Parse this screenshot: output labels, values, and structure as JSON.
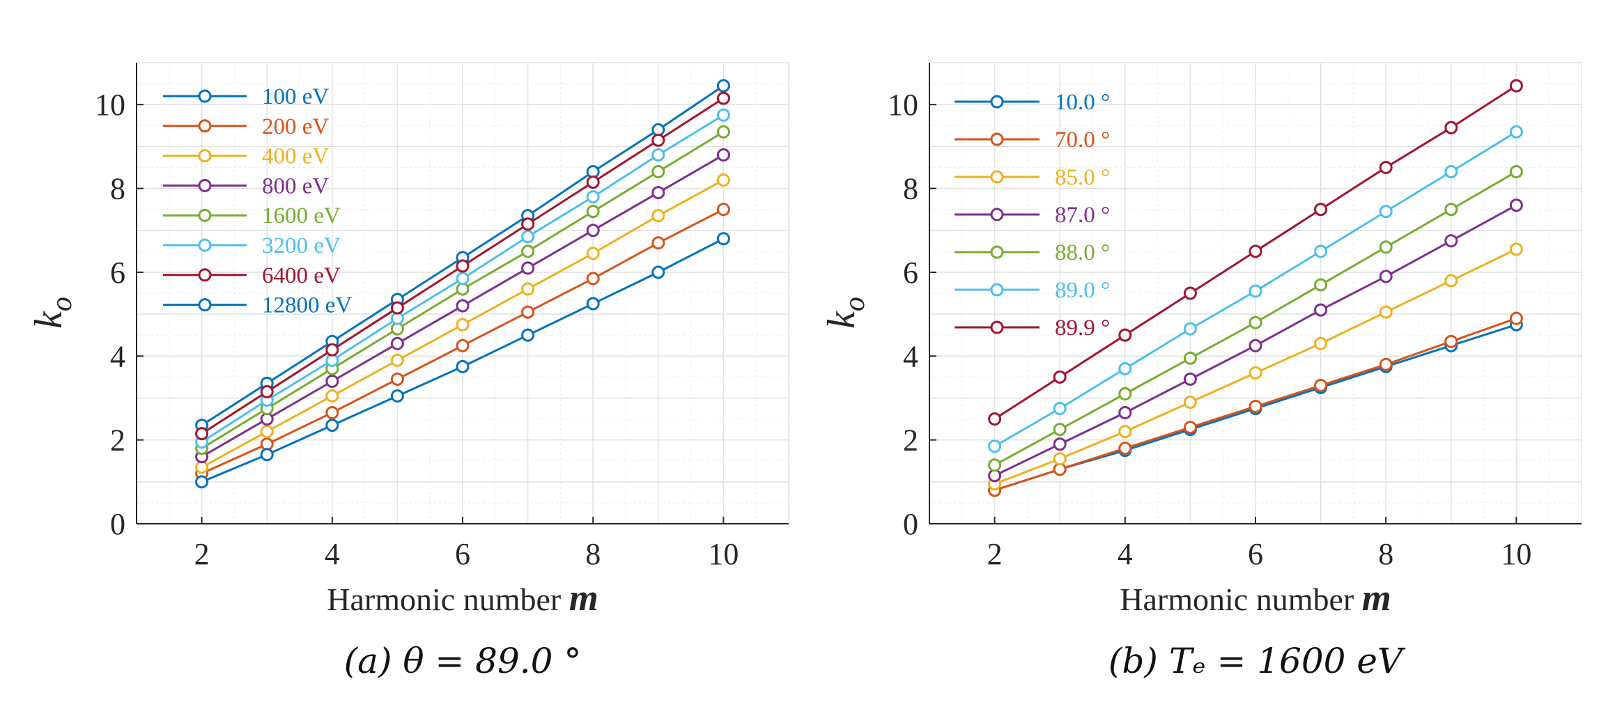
{
  "chart_data": [
    {
      "type": "line",
      "caption": "(a)  θ = 89.0 °",
      "xlabel_text": "Harmonic number ",
      "xlabel_var": "m",
      "ylabel_base": "k",
      "ylabel_sub": "o",
      "xlim": [
        1,
        11
      ],
      "ylim": [
        0,
        11
      ],
      "xticks": [
        2,
        4,
        6,
        8,
        10
      ],
      "yticks": [
        0,
        2,
        4,
        6,
        8,
        10
      ],
      "grid": true,
      "legend_position": "top-left",
      "x": [
        2,
        3,
        4,
        5,
        6,
        7,
        8,
        9,
        10
      ],
      "series": [
        {
          "name": "100 eV",
          "color": "#0072BD",
          "values": [
            2.35,
            3.35,
            4.35,
            5.35,
            6.35,
            7.35,
            8.4,
            9.4,
            10.45
          ]
        },
        {
          "name": "200 eV",
          "color": "#D95319",
          "values": [
            1.2,
            1.9,
            2.65,
            3.45,
            4.25,
            5.05,
            5.85,
            6.7,
            7.5
          ]
        },
        {
          "name": "400 eV",
          "color": "#EDB120",
          "values": [
            1.35,
            2.2,
            3.05,
            3.9,
            4.75,
            5.6,
            6.45,
            7.35,
            8.2
          ]
        },
        {
          "name": "800 eV",
          "color": "#7E2F8E",
          "values": [
            1.6,
            2.5,
            3.4,
            4.3,
            5.2,
            6.1,
            7.0,
            7.9,
            8.8
          ]
        },
        {
          "name": "1600 eV",
          "color": "#77AC30",
          "values": [
            1.8,
            2.75,
            3.7,
            4.65,
            5.6,
            6.5,
            7.45,
            8.4,
            9.35
          ]
        },
        {
          "name": "3200 eV",
          "color": "#4DBEEE",
          "values": [
            1.95,
            2.95,
            3.9,
            4.9,
            5.85,
            6.85,
            7.8,
            8.8,
            9.75
          ]
        },
        {
          "name": "6400 eV",
          "color": "#A2142F",
          "values": [
            2.15,
            3.15,
            4.15,
            5.15,
            6.15,
            7.15,
            8.15,
            9.15,
            10.15
          ]
        },
        {
          "name": "12800 eV",
          "color": "#0072BD",
          "values": [
            1.0,
            1.65,
            2.35,
            3.05,
            3.75,
            4.5,
            5.25,
            6.0,
            6.8
          ]
        }
      ]
    },
    {
      "type": "line",
      "caption": "(b)  Tₑ = 1600 eV",
      "xlabel_text": "Harmonic number ",
      "xlabel_var": "m",
      "ylabel_base": "k",
      "ylabel_sub": "o",
      "xlim": [
        1,
        11
      ],
      "ylim": [
        0,
        11
      ],
      "xticks": [
        2,
        4,
        6,
        8,
        10
      ],
      "yticks": [
        0,
        2,
        4,
        6,
        8,
        10
      ],
      "grid": true,
      "legend_position": "top-left",
      "x": [
        2,
        3,
        4,
        5,
        6,
        7,
        8,
        9,
        10
      ],
      "series": [
        {
          "name": "10.0 °",
          "color": "#0072BD",
          "values": [
            0.8,
            1.3,
            1.75,
            2.25,
            2.75,
            3.25,
            3.75,
            4.25,
            4.75
          ]
        },
        {
          "name": "70.0 °",
          "color": "#D95319",
          "values": [
            0.8,
            1.3,
            1.8,
            2.3,
            2.8,
            3.3,
            3.8,
            4.35,
            4.9
          ]
        },
        {
          "name": "85.0 °",
          "color": "#EDB120",
          "values": [
            0.95,
            1.55,
            2.2,
            2.9,
            3.6,
            4.3,
            5.05,
            5.8,
            6.55
          ]
        },
        {
          "name": "87.0 °",
          "color": "#7E2F8E",
          "values": [
            1.15,
            1.9,
            2.65,
            3.45,
            4.25,
            5.1,
            5.9,
            6.75,
            7.6
          ]
        },
        {
          "name": "88.0 °",
          "color": "#77AC30",
          "values": [
            1.4,
            2.25,
            3.1,
            3.95,
            4.8,
            5.7,
            6.6,
            7.5,
            8.4
          ]
        },
        {
          "name": "89.0 °",
          "color": "#4DBEEE",
          "values": [
            1.85,
            2.75,
            3.7,
            4.65,
            5.55,
            6.5,
            7.45,
            8.4,
            9.35
          ]
        },
        {
          "name": "89.9 °",
          "color": "#A2142F",
          "values": [
            2.5,
            3.5,
            4.5,
            5.5,
            6.5,
            7.5,
            8.5,
            9.45,
            10.45
          ]
        }
      ]
    }
  ]
}
